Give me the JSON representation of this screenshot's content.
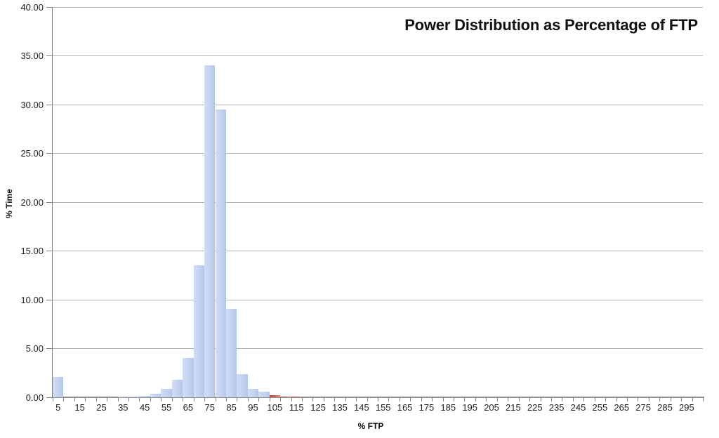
{
  "chart_data": {
    "type": "bar",
    "title": "Power Distribution as Percentage of FTP",
    "xlabel": "% FTP",
    "ylabel": "% Time",
    "ylim": [
      0,
      40
    ],
    "y_tick_step": 5,
    "grid": true,
    "legend_position": "none",
    "y_tick_labels": [
      "40.00",
      "35.00",
      "30.00",
      "25.00",
      "20.00",
      "15.00",
      "10.00",
      "5.00",
      "0.00"
    ],
    "x_tick_labels": [
      "5",
      "15",
      "25",
      "35",
      "45",
      "55",
      "65",
      "75",
      "85",
      "95",
      "105",
      "115",
      "125",
      "135",
      "145",
      "155",
      "165",
      "175",
      "185",
      "195",
      "205",
      "215",
      "225",
      "235",
      "245",
      "255",
      "265",
      "275",
      "285",
      "295"
    ],
    "categories": [
      5,
      10,
      15,
      20,
      25,
      30,
      35,
      40,
      45,
      50,
      55,
      60,
      65,
      70,
      75,
      80,
      85,
      90,
      95,
      100,
      105,
      110,
      115,
      120,
      125,
      130,
      135,
      140,
      145,
      150,
      155,
      160,
      165,
      170,
      175,
      180,
      185,
      190,
      195,
      200,
      205,
      210,
      215,
      220,
      225,
      230,
      235,
      240,
      245,
      250,
      255,
      260,
      265,
      270,
      275,
      280,
      285,
      290,
      295,
      300
    ],
    "values": [
      2.1,
      0,
      0,
      0,
      0,
      0,
      0.08,
      0.1,
      0.15,
      0.35,
      0.9,
      1.8,
      4.0,
      13.5,
      34.0,
      29.5,
      9.1,
      2.35,
      0.9,
      0.6,
      0.25,
      0.1,
      0.05,
      0,
      0,
      0,
      0,
      0,
      0,
      0,
      0,
      0,
      0,
      0,
      0,
      0,
      0,
      0,
      0,
      0,
      0,
      0,
      0,
      0,
      0,
      0,
      0,
      0,
      0,
      0,
      0,
      0,
      0,
      0,
      0,
      0,
      0,
      0,
      0,
      0
    ],
    "red_threshold": 100,
    "colors": {
      "bar_blue": "#c3d2f0",
      "bar_red": "#c0504d",
      "gridline": "#b3b3b3",
      "axis": "#808080",
      "text": "#1f1f1f"
    }
  }
}
